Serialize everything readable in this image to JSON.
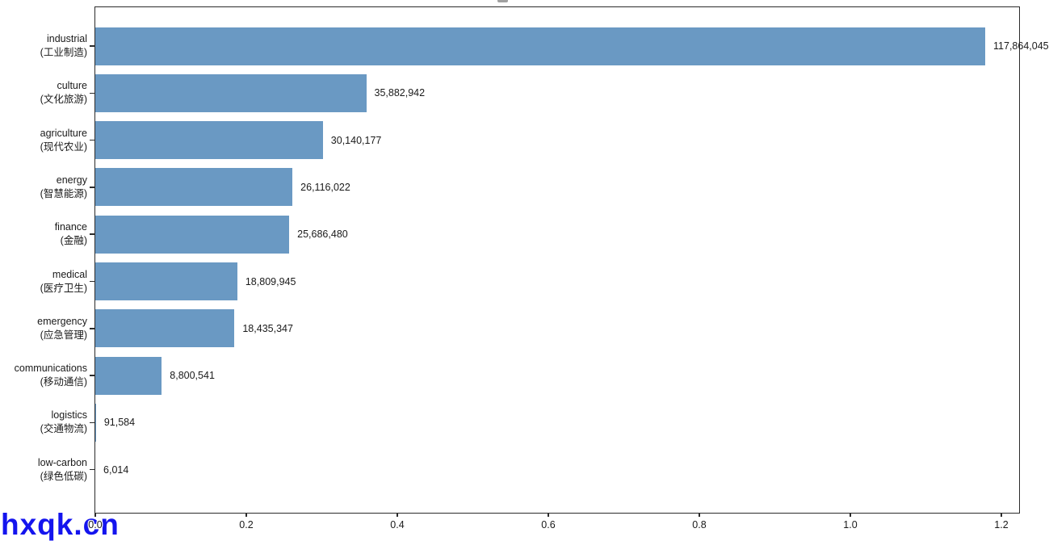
{
  "watermark": {
    "text": "hxqk.cn",
    "color": "#1414ee"
  },
  "chart_data": {
    "type": "bar",
    "orientation": "horizontal",
    "title": "",
    "xlabel": "",
    "ylabel": "",
    "grid": false,
    "legend": false,
    "axis_unit_scale": 100000000,
    "x_tick_labels": [
      "0.0",
      "0.2",
      "0.4",
      "0.6",
      "0.8",
      "1.0",
      "1.2"
    ],
    "x_tick_values": [
      0.0,
      0.2,
      0.4,
      0.6,
      0.8,
      1.0,
      1.2
    ],
    "xlim": [
      0,
      1.2257
    ],
    "bar_color": "#6a99c3",
    "categories": [
      {
        "en": "industrial",
        "zh": "(工业制造)",
        "value": 117864045,
        "value_label": "117,864,045"
      },
      {
        "en": "culture",
        "zh": "(文化旅游)",
        "value": 35882942,
        "value_label": "35,882,942"
      },
      {
        "en": "agriculture",
        "zh": "(现代农业)",
        "value": 30140177,
        "value_label": "30,140,177"
      },
      {
        "en": "energy",
        "zh": "(智慧能源)",
        "value": 26116022,
        "value_label": "26,116,022"
      },
      {
        "en": "finance",
        "zh": "(金融)",
        "value": 25686480,
        "value_label": "25,686,480"
      },
      {
        "en": "medical",
        "zh": "(医疗卫生)",
        "value": 18809945,
        "value_label": "18,809,945"
      },
      {
        "en": "emergency",
        "zh": "(应急管理)",
        "value": 18435347,
        "value_label": "18,435,347"
      },
      {
        "en": "communications",
        "zh": "(移动通信)",
        "value": 8800541,
        "value_label": "8,800,541"
      },
      {
        "en": "logistics",
        "zh": "(交通物流)",
        "value": 91584,
        "value_label": "91,584"
      },
      {
        "en": "low-carbon",
        "zh": "(绿色低碳)",
        "value": 6014,
        "value_label": "6,014"
      }
    ]
  }
}
